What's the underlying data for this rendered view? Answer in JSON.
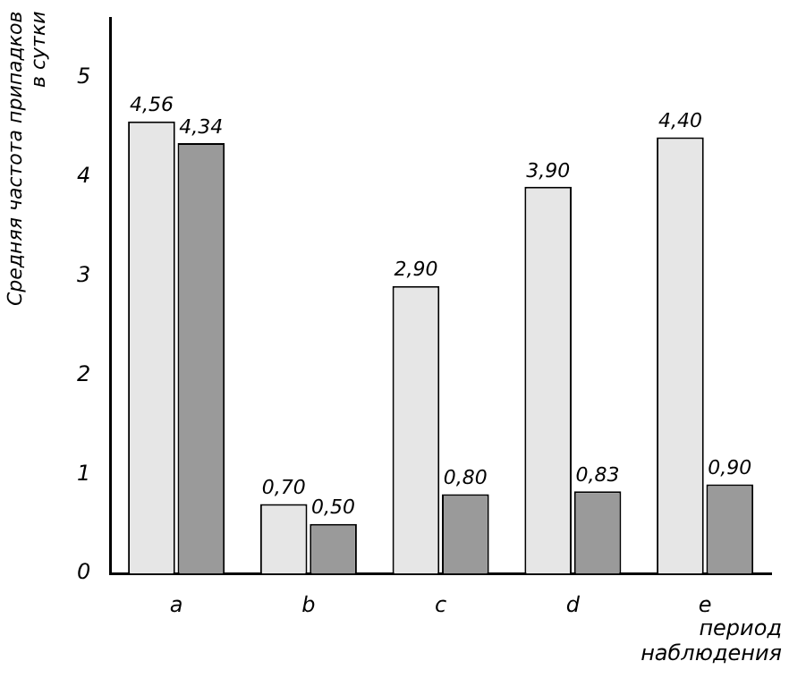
{
  "chart_data": {
    "type": "bar",
    "ylabel": "Средняя частота припадков в сутки",
    "xlabel": "период наблюдения",
    "categories": [
      "a",
      "b",
      "c",
      "d",
      "e"
    ],
    "series": [
      {
        "color": "#e6e6e6",
        "values": [
          4.56,
          0.7,
          2.9,
          3.9,
          4.4
        ],
        "value_labels": [
          "4,56",
          "0,70",
          "2,90",
          "3,90",
          "4,40"
        ]
      },
      {
        "color": "#9a9a9a",
        "values": [
          4.34,
          0.5,
          0.8,
          0.83,
          0.9
        ],
        "value_labels": [
          "4,34",
          "0,50",
          "0,80",
          "0,83",
          "0,90"
        ]
      }
    ],
    "ylim": [
      0,
      5.6
    ],
    "yticks": [
      0,
      1,
      2,
      3,
      4,
      5
    ],
    "grid": false,
    "legend": false
  }
}
